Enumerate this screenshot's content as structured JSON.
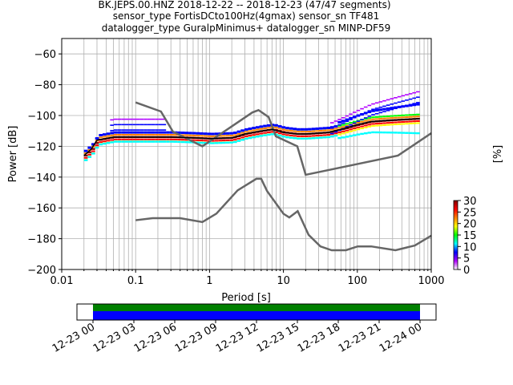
{
  "title_lines": [
    "BK.JEPS.00.HNZ   2018-12-22 -- 2018-12-23  (47/47 segments)",
    "sensor_type FortisDCto100Hz(4gmax) sensor_sn TF481",
    "datalogger_type GuralpMinimus+ datalogger_sn MINP-DF59"
  ],
  "chart_data": [
    {
      "type": "heatmap",
      "xlabel": "Period [s]",
      "ylabel": "Power [dB]",
      "xscale": "log",
      "xlim": [
        0.01,
        1000
      ],
      "ylim": [
        -200,
        -50
      ],
      "x_ticks": [
        "0.01",
        "0.1",
        "1",
        "10",
        "100",
        "1000"
      ],
      "y_ticks": [
        -60,
        -80,
        -100,
        -120,
        -140,
        -160,
        -180,
        -200
      ],
      "grid": true,
      "model_curves": [
        {
          "id": "nhnm",
          "color": "#666666",
          "points": [
            [
              0.1,
              -91.5
            ],
            [
              0.22,
              -97.4
            ],
            [
              0.32,
              -110.5
            ],
            [
              0.8,
              -120
            ],
            [
              3.8,
              -98
            ],
            [
              4.6,
              -96.5
            ],
            [
              6.3,
              -101
            ],
            [
              7.9,
              -113.5
            ],
            [
              15.4,
              -120
            ],
            [
              20,
              -138.5
            ],
            [
              354.8,
              -126
            ],
            [
              1000,
              -111.5
            ]
          ]
        },
        {
          "id": "nlnm",
          "color": "#666666",
          "points": [
            [
              0.1,
              -168
            ],
            [
              0.17,
              -166.7
            ],
            [
              0.4,
              -166.7
            ],
            [
              0.8,
              -169.2
            ],
            [
              1.24,
              -163.7
            ],
            [
              2.4,
              -148.6
            ],
            [
              4.3,
              -141.1
            ],
            [
              5,
              -141.1
            ],
            [
              6,
              -149
            ],
            [
              10,
              -163.8
            ],
            [
              12,
              -166.2
            ],
            [
              15.6,
              -162.1
            ],
            [
              21.9,
              -177.5
            ],
            [
              31.6,
              -185
            ],
            [
              45,
              -187.5
            ],
            [
              70,
              -187.5
            ],
            [
              101,
              -185
            ],
            [
              154,
              -185
            ],
            [
              328,
              -187.5
            ],
            [
              600,
              -184.4
            ],
            [
              1000,
              -178
            ]
          ]
        }
      ],
      "mode_curve": {
        "color": "#000000",
        "points": [
          [
            0.02,
            -126
          ],
          [
            0.025,
            -122
          ],
          [
            0.03,
            -116
          ],
          [
            0.05,
            -114
          ],
          [
            0.1,
            -114
          ],
          [
            0.3,
            -114
          ],
          [
            0.6,
            -114.5
          ],
          [
            1,
            -115
          ],
          [
            2,
            -114.5
          ],
          [
            3,
            -112
          ],
          [
            5,
            -110
          ],
          [
            7,
            -109
          ],
          [
            10,
            -111
          ],
          [
            15,
            -112
          ],
          [
            20,
            -112
          ],
          [
            40,
            -111
          ],
          [
            60,
            -109
          ],
          [
            100,
            -106
          ],
          [
            150,
            -104
          ],
          [
            300,
            -103
          ],
          [
            700,
            -102
          ]
        ]
      },
      "colorbar": {
        "label": "[%]",
        "ticks": [
          0,
          5,
          10,
          15,
          20,
          25,
          30
        ],
        "range": [
          0,
          30
        ],
        "colormap": [
          "#ffffff",
          "#b000ff",
          "#0000ff",
          "#00ffff",
          "#00ff00",
          "#ffff00",
          "#ff8000",
          "#ff0000",
          "#800000"
        ]
      }
    },
    {
      "type": "bar",
      "description_key": "data-availability",
      "time_ticks": [
        "12-23 00",
        "12-23 03",
        "12-23 06",
        "12-23 09",
        "12-23 12",
        "12-23 15",
        "12-23 18",
        "12-23 21",
        "12-24 00"
      ],
      "colors": {
        "green": "#008000",
        "blue": "#0000ff"
      }
    }
  ]
}
